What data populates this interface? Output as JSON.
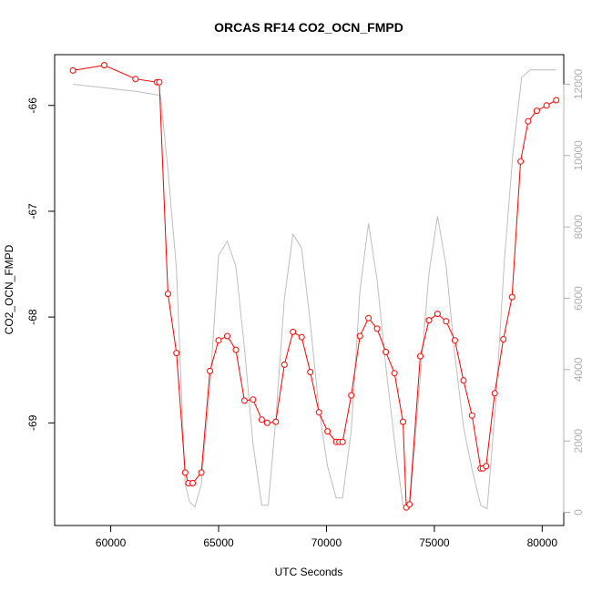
{
  "chart_data": {
    "type": "line",
    "title": "ORCAS RF14 CO2_OCN_FMPD",
    "xlabel": "UTC Seconds",
    "ylabel": "CO2_OCN_FMPD",
    "xlim": [
      57400,
      81000
    ],
    "ylim": [
      -69.97,
      -65.52
    ],
    "y2lim": [
      -370,
      12830
    ],
    "grid": false,
    "legend": "none",
    "x_ticks": [
      60000,
      65000,
      70000,
      75000,
      80000
    ],
    "x_tick_labels": [
      "60000",
      "65000",
      "70000",
      "75000",
      "80000"
    ],
    "y_ticks": [
      -69,
      -68,
      -67,
      -66
    ],
    "y_tick_labels": [
      "-69",
      "-68",
      "-67",
      "-66"
    ],
    "y2_ticks": [
      0,
      2000,
      4000,
      6000,
      8000,
      10000,
      12000
    ],
    "y2_tick_labels": [
      "0",
      "2000",
      "4000",
      "6000",
      "8000",
      "10000",
      "12000"
    ],
    "colors": {
      "primary": "#ff0000",
      "secondary": "#bebebe",
      "axis": "#000000",
      "right_axis": "#b0b0b0"
    },
    "series": [
      {
        "axis": "left",
        "style": "line+open-circles",
        "x": [
          58250,
          59700,
          61150,
          62150,
          62250,
          62650,
          63050,
          63450,
          63600,
          63800,
          64200,
          64600,
          65000,
          65400,
          65800,
          66200,
          66600,
          67000,
          67250,
          67650,
          68050,
          68450,
          68850,
          69250,
          69650,
          70050,
          70450,
          70600,
          70750,
          71150,
          71550,
          71950,
          72350,
          72750,
          73150,
          73550,
          73700,
          73850,
          74350,
          74750,
          75150,
          75550,
          75950,
          76350,
          76750,
          77150,
          77250,
          77400,
          77800,
          78200,
          78600,
          79000,
          79350,
          79750,
          80200,
          80650
        ],
        "y": [
          -65.67,
          -65.62,
          -65.75,
          -65.78,
          -65.78,
          -67.78,
          -68.34,
          -69.47,
          -69.57,
          -69.57,
          -69.47,
          -68.51,
          -68.22,
          -68.18,
          -68.31,
          -68.79,
          -68.78,
          -68.97,
          -69.0,
          -68.99,
          -68.45,
          -68.14,
          -68.19,
          -68.52,
          -68.9,
          -69.08,
          -69.18,
          -69.18,
          -69.18,
          -68.74,
          -68.18,
          -68.01,
          -68.11,
          -68.33,
          -68.53,
          -68.99,
          -69.8,
          -69.77,
          -68.37,
          -68.03,
          -67.97,
          -68.04,
          -68.22,
          -68.6,
          -68.93,
          -69.43,
          -69.43,
          -69.41,
          -68.72,
          -68.21,
          -67.81,
          -66.53,
          -66.15,
          -66.05,
          -66.0,
          -65.95
        ]
      },
      {
        "axis": "right",
        "style": "line",
        "x": [
          58250,
          59700,
          61150,
          62150,
          62300,
          62650,
          63050,
          63450,
          63650,
          63900,
          64200,
          64600,
          65000,
          65400,
          65800,
          66200,
          66600,
          67000,
          67300,
          67650,
          68050,
          68450,
          68850,
          69250,
          69650,
          70050,
          70450,
          70750,
          71150,
          71550,
          71950,
          72350,
          72750,
          73150,
          73550,
          73850,
          74350,
          74750,
          75150,
          75550,
          75950,
          76350,
          76750,
          77150,
          77450,
          77850,
          78250,
          78650,
          79050,
          79450,
          79800,
          80200,
          80650
        ],
        "y": [
          12000,
          11900,
          11800,
          11700,
          11700,
          9600,
          6800,
          800,
          300,
          150,
          800,
          3500,
          7200,
          7600,
          6900,
          4600,
          1900,
          200,
          200,
          2600,
          6000,
          7800,
          7400,
          5300,
          2900,
          1300,
          400,
          400,
          2300,
          6200,
          8100,
          6500,
          4100,
          2000,
          200,
          100,
          3800,
          6700,
          8300,
          6900,
          4400,
          2400,
          1200,
          200,
          100,
          3100,
          7100,
          10100,
          12200,
          12400,
          12400,
          12400,
          12400
        ]
      }
    ]
  }
}
